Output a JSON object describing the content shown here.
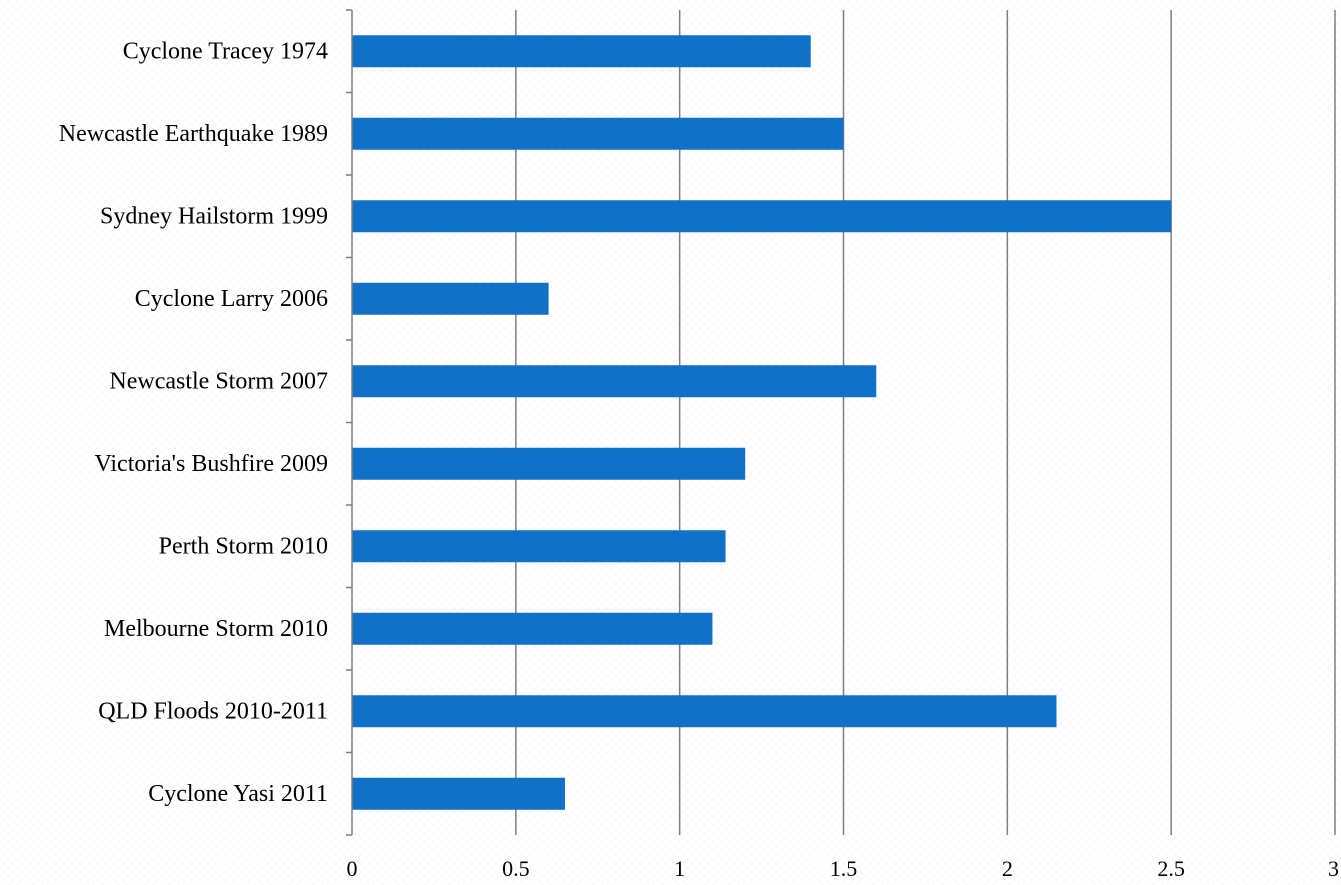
{
  "chart_data": {
    "type": "bar",
    "orientation": "horizontal",
    "categories": [
      "Cyclone Tracey 1974",
      "Newcastle Earthquake 1989",
      "Sydney Hailstorm 1999",
      "Cyclone Larry 2006",
      "Newcastle Storm 2007",
      "Victoria's Bushfire 2009",
      "Perth Storm 2010",
      "Melbourne Storm 2010",
      "QLD Floods 2010-2011",
      "Cyclone Yasi 2011"
    ],
    "values": [
      1.4,
      1.5,
      2.5,
      0.6,
      1.6,
      1.2,
      1.14,
      1.1,
      2.15,
      0.65
    ],
    "xlim": [
      0,
      3
    ],
    "xticks": [
      0,
      0.5,
      1,
      1.5,
      2,
      2.5,
      3
    ],
    "xtick_labels": [
      "0",
      "0.5",
      "1",
      "1.5",
      "2",
      "2.5",
      "3"
    ],
    "title": "",
    "xlabel": "",
    "ylabel": "",
    "grid": "vertical",
    "legend": "none",
    "colors": {
      "bar": "#1170C8",
      "grid": "#7f7f7f",
      "axis": "#7f7f7f",
      "text": "#000000"
    }
  }
}
